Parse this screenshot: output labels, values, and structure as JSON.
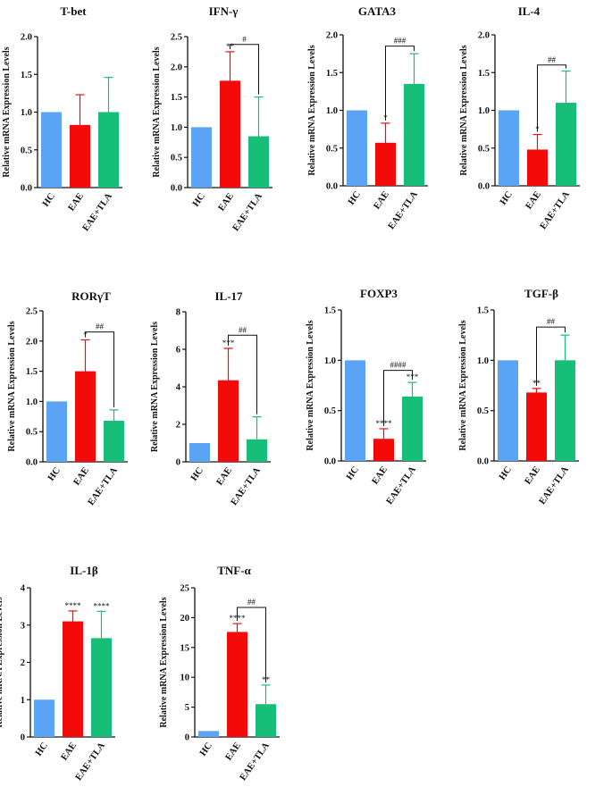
{
  "colors": {
    "HC": "#5BA4F5",
    "EAE": "#F50A0A",
    "EAE+TLA": "#16BE78",
    "axis": "#111111"
  },
  "y_axis_label": "Relative mRNA Expression Levels",
  "chart_data": [
    {
      "type": "bar",
      "title": "T-bet",
      "categories": [
        "HC",
        "EAE",
        "EAE+TLA"
      ],
      "values": [
        1.0,
        0.83,
        1.0
      ],
      "errors": [
        0,
        0.4,
        0.46
      ],
      "ylim": [
        0,
        2.0
      ],
      "yticks": [
        "0.0",
        "0.5",
        "1.0",
        "1.5",
        "2.0"
      ],
      "tickvals": [
        0,
        0.5,
        1.0,
        1.5,
        2.0
      ],
      "ylabel": "Relative mRNA Expression Levels",
      "stars": [
        "",
        "",
        ""
      ],
      "bracket": null
    },
    {
      "type": "bar",
      "title": "IFN-γ",
      "categories": [
        "HC",
        "EAE",
        "EAE+TLA"
      ],
      "values": [
        1.0,
        1.77,
        0.85
      ],
      "errors": [
        0,
        0.48,
        0.65
      ],
      "ylim": [
        0,
        2.5
      ],
      "yticks": [
        "0.0",
        "0.5",
        "1.0",
        "1.5",
        "2.0",
        "2.5"
      ],
      "tickvals": [
        0,
        0.5,
        1.0,
        1.5,
        2.0,
        2.5
      ],
      "ylabel": "Relative mRNA Expression Levels",
      "stars": [
        "",
        "**",
        ""
      ],
      "bracket": {
        "label": "#",
        "level": 2.37
      }
    },
    {
      "type": "bar",
      "title": "GATA3",
      "categories": [
        "HC",
        "EAE",
        "EAE+TLA"
      ],
      "values": [
        1.0,
        0.57,
        1.35
      ],
      "errors": [
        0,
        0.26,
        0.4
      ],
      "ylim": [
        0,
        2.0
      ],
      "yticks": [
        "0.0",
        "0.5",
        "1.0",
        "1.5",
        "2.0"
      ],
      "tickvals": [
        0,
        0.5,
        1.0,
        1.5,
        2.0
      ],
      "ylabel": "Relative mRNA Expression Levels",
      "stars": [
        "",
        "*",
        ""
      ],
      "bracket": {
        "label": "###",
        "level": 1.85
      }
    },
    {
      "type": "bar",
      "title": "IL-4",
      "categories": [
        "HC",
        "EAE",
        "EAE+TLA"
      ],
      "values": [
        1.0,
        0.48,
        1.1
      ],
      "errors": [
        0,
        0.2,
        0.42
      ],
      "ylim": [
        0,
        2.0
      ],
      "yticks": [
        "0.0",
        "0.5",
        "1.0",
        "1.5",
        "2.0"
      ],
      "tickvals": [
        0,
        0.5,
        1.0,
        1.5,
        2.0
      ],
      "ylabel": "Relative mRNA Expression Levels",
      "stars": [
        "",
        "*",
        ""
      ],
      "bracket": {
        "label": "##",
        "level": 1.6
      }
    },
    {
      "type": "bar",
      "title": "RORγT",
      "categories": [
        "HC",
        "EAE",
        "EAE+TLA"
      ],
      "values": [
        1.0,
        1.5,
        0.68
      ],
      "errors": [
        0,
        0.52,
        0.18
      ],
      "ylim": [
        0,
        2.5
      ],
      "yticks": [
        "0.0",
        "0.5",
        "1.0",
        "1.5",
        "2.0",
        "2.5"
      ],
      "tickvals": [
        0,
        0.5,
        1.0,
        1.5,
        2.0,
        2.5
      ],
      "ylabel": "Relative mRNA Expression Levels",
      "stars": [
        "",
        "*",
        ""
      ],
      "bracket": {
        "label": "##",
        "level": 2.15
      }
    },
    {
      "type": "bar",
      "title": "IL-17",
      "categories": [
        "HC",
        "EAE",
        "EAE+TLA"
      ],
      "values": [
        1.0,
        4.35,
        1.2
      ],
      "errors": [
        0,
        1.7,
        1.2
      ],
      "ylim": [
        0,
        8
      ],
      "yticks": [
        "0",
        "2",
        "4",
        "6",
        "8"
      ],
      "tickvals": [
        0,
        2,
        4,
        6,
        8
      ],
      "ylabel": "Relative mRNA Expression Levels",
      "stars": [
        "",
        "***",
        ""
      ],
      "bracket": {
        "label": "##",
        "level": 6.75
      }
    },
    {
      "type": "bar",
      "title": "FOXP3",
      "categories": [
        "HC",
        "EAE",
        "EAE+TLA"
      ],
      "values": [
        1.0,
        0.22,
        0.64
      ],
      "errors": [
        0,
        0.1,
        0.14
      ],
      "ylim": [
        0,
        1.5
      ],
      "yticks": [
        "0.0",
        "0.5",
        "1.0",
        "1.5"
      ],
      "tickvals": [
        0,
        0.5,
        1.0,
        1.5
      ],
      "ylabel": "Relative mRNA Expression Levels",
      "stars": [
        "",
        "****",
        "***"
      ],
      "bracket": {
        "label": "####",
        "level": 0.9
      }
    },
    {
      "type": "bar",
      "title": "TGF-β",
      "categories": [
        "HC",
        "EAE",
        "EAE+TLA"
      ],
      "values": [
        1.0,
        0.68,
        1.0
      ],
      "errors": [
        0,
        0.04,
        0.25
      ],
      "ylim": [
        0,
        1.5
      ],
      "yticks": [
        "0.0",
        "0.5",
        "1.0",
        "1.5"
      ],
      "tickvals": [
        0,
        0.5,
        1.0,
        1.5
      ],
      "ylabel": "Relative mRNA Expression Levels",
      "stars": [
        "",
        "**",
        ""
      ],
      "bracket": {
        "label": "##",
        "level": 1.33
      }
    },
    {
      "type": "bar",
      "title": "IL-1β",
      "categories": [
        "HC",
        "EAE",
        "EAE+TLA"
      ],
      "values": [
        1.0,
        3.1,
        2.65
      ],
      "errors": [
        0,
        0.28,
        0.72
      ],
      "ylim": [
        0,
        4
      ],
      "yticks": [
        "0",
        "1",
        "2",
        "3",
        "4"
      ],
      "tickvals": [
        0,
        1,
        2,
        3,
        4
      ],
      "ylabel": "Relative mRNA Expression Levels",
      "stars": [
        "",
        "****",
        "****"
      ],
      "bracket": null
    },
    {
      "type": "bar",
      "title": "TNF-α",
      "categories": [
        "HC",
        "EAE",
        "EAE+TLA"
      ],
      "values": [
        1.0,
        17.6,
        5.5
      ],
      "errors": [
        0,
        1.4,
        3.2
      ],
      "ylim": [
        0,
        25
      ],
      "yticks": [
        "0",
        "5",
        "10",
        "15",
        "20",
        "25"
      ],
      "tickvals": [
        0,
        5,
        10,
        15,
        20,
        25
      ],
      "ylabel": "Relative mRNA Expression Levels",
      "stars": [
        "",
        "****",
        "**"
      ],
      "bracket": {
        "label": "##",
        "level": 21.7
      }
    }
  ]
}
